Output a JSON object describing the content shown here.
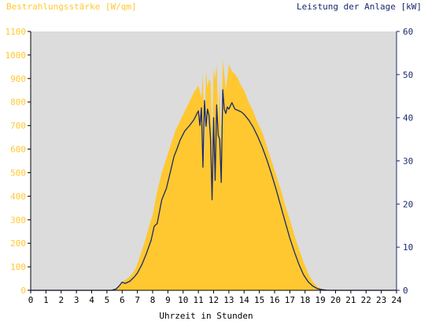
{
  "chart_data": {
    "type": "area",
    "left_axis_title": "Bestrahlungsstärke [W/qm]",
    "right_axis_title": "Leistung der Anlage [kW]",
    "xlabel": "Uhrzeit in Stunden",
    "xlim": [
      0,
      24
    ],
    "ylim_left": [
      0,
      1100
    ],
    "ylim_right": [
      0,
      60
    ],
    "x_ticks": [
      0,
      1,
      2,
      3,
      4,
      5,
      6,
      7,
      8,
      9,
      10,
      11,
      12,
      13,
      14,
      15,
      16,
      17,
      18,
      19,
      20,
      21,
      22,
      23,
      24
    ],
    "left_ticks": [
      0,
      100,
      200,
      300,
      400,
      500,
      600,
      700,
      800,
      900,
      1000,
      1100
    ],
    "right_ticks": [
      0,
      10,
      20,
      30,
      40,
      50,
      60
    ],
    "grid": false,
    "background": "#dcdcdc",
    "colors": {
      "irradiance": "#ffc830",
      "power": "#1a2a6c",
      "axis": "#000000"
    },
    "series": [
      {
        "axis": "left",
        "style": "area",
        "x": [
          0,
          5.3,
          5.6,
          5.8,
          6.0,
          6.3,
          6.6,
          6.9,
          7.2,
          7.5,
          7.8,
          8.0,
          8.3,
          8.6,
          8.9,
          9.2,
          9.5,
          9.8,
          10.1,
          10.4,
          10.7,
          11.0,
          11.2,
          11.3,
          11.4,
          11.5,
          11.6,
          11.7,
          11.8,
          11.9,
          12.0,
          12.1,
          12.2,
          12.3,
          12.4,
          12.5,
          12.6,
          12.7,
          12.8,
          12.9,
          13.0,
          13.2,
          13.4,
          13.6,
          13.8,
          14.0,
          14.3,
          14.6,
          14.9,
          15.2,
          15.5,
          15.8,
          16.1,
          16.4,
          16.7,
          17.0,
          17.3,
          17.6,
          17.9,
          18.2,
          18.5,
          18.8,
          19.1,
          19.4,
          19.7,
          20.0,
          24
        ],
        "y": [
          0,
          0,
          8,
          20,
          35,
          48,
          65,
          95,
          150,
          210,
          280,
          320,
          420,
          500,
          560,
          620,
          680,
          720,
          760,
          800,
          840,
          870,
          820,
          920,
          550,
          940,
          860,
          900,
          880,
          650,
          940,
          900,
          960,
          720,
          880,
          600,
          980,
          920,
          850,
          900,
          960,
          930,
          920,
          900,
          870,
          850,
          800,
          760,
          710,
          670,
          610,
          550,
          490,
          430,
          360,
          300,
          235,
          175,
          120,
          72,
          38,
          15,
          5,
          2,
          0,
          0,
          0
        ]
      },
      {
        "axis": "right",
        "style": "line",
        "x": [
          0,
          5.3,
          5.6,
          5.8,
          6.0,
          6.2,
          6.5,
          6.8,
          7.0,
          7.3,
          7.6,
          7.9,
          8.1,
          8.3,
          8.6,
          8.9,
          9.2,
          9.4,
          9.6,
          9.8,
          10.1,
          10.4,
          10.7,
          11.0,
          11.1,
          11.2,
          11.3,
          11.4,
          11.5,
          11.6,
          11.7,
          11.8,
          11.9,
          12.0,
          12.1,
          12.2,
          12.3,
          12.4,
          12.5,
          12.6,
          12.7,
          12.8,
          12.9,
          13.0,
          13.2,
          13.4,
          13.6,
          13.8,
          14.0,
          14.3,
          14.6,
          14.9,
          15.2,
          15.5,
          15.8,
          16.1,
          16.4,
          16.7,
          17.0,
          17.3,
          17.6,
          17.9,
          18.2,
          18.5,
          18.8,
          19.1,
          19.4,
          19.7,
          20.0,
          24
        ],
        "y": [
          0,
          0,
          0.3,
          1.0,
          1.9,
          1.6,
          2.1,
          3.1,
          4.0,
          6.0,
          8.6,
          11.6,
          14.8,
          15.5,
          21.0,
          23.6,
          28.0,
          31.0,
          32.8,
          34.8,
          36.9,
          38.1,
          39.5,
          41.6,
          38.2,
          42.3,
          28.5,
          44.0,
          38.0,
          42.0,
          40.5,
          35.0,
          21.0,
          40.0,
          25.5,
          43.0,
          36.0,
          35.0,
          25.0,
          46.5,
          42.0,
          41.0,
          42.5,
          42.0,
          43.5,
          42.0,
          41.7,
          41.4,
          40.8,
          39.5,
          37.8,
          35.6,
          33.1,
          30.2,
          26.9,
          23.4,
          19.6,
          15.8,
          12.1,
          8.9,
          6.0,
          3.6,
          2.0,
          1.0,
          0.4,
          0.15,
          0.05,
          0,
          0,
          0
        ]
      }
    ]
  }
}
